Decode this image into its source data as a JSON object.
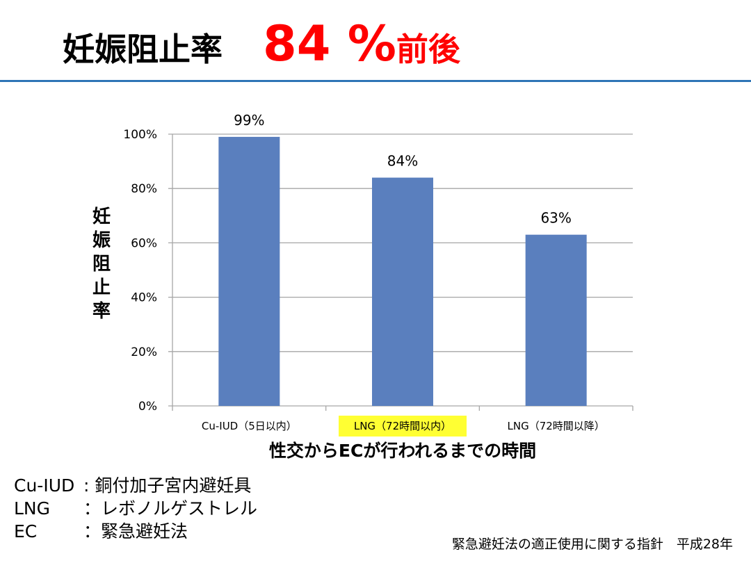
{
  "slide": {
    "title_main": "妊娠阻止率",
    "title_value": "84 %",
    "title_suffix": "前後",
    "colors": {
      "title_accent": "#ff0000",
      "rule": "#2e75b6",
      "bar": "#5a7fbe",
      "highlight": "#ffff33"
    }
  },
  "chart_data": {
    "type": "bar",
    "categories": [
      "Cu-IUD（5日以内）",
      "LNG（72時間以内）",
      "LNG（72時間以降）"
    ],
    "values": [
      99,
      84,
      63
    ],
    "data_labels": [
      "99%",
      "84%",
      "63%"
    ],
    "highlighted_category": 1,
    "ylabel": "妊娠阻止率",
    "xlabel": "性交からECが行われるまでの時間",
    "ylim": [
      0,
      100
    ],
    "yticks": [
      0,
      20,
      40,
      60,
      80,
      100
    ],
    "ytick_labels": [
      "0%",
      "20%",
      "40%",
      "60%",
      "80%",
      "100%"
    ],
    "grid": true,
    "legend": "none"
  },
  "glossary": [
    {
      "term": "Cu-IUD",
      "definition": ": 銅付加子宮内避妊具"
    },
    {
      "term": "LNG",
      "definition": "：レボノルゲストレル"
    },
    {
      "term": "EC",
      "definition": "：緊急避妊法"
    }
  ],
  "source": "緊急避妊法の適正使用に関する指針　平成28年"
}
